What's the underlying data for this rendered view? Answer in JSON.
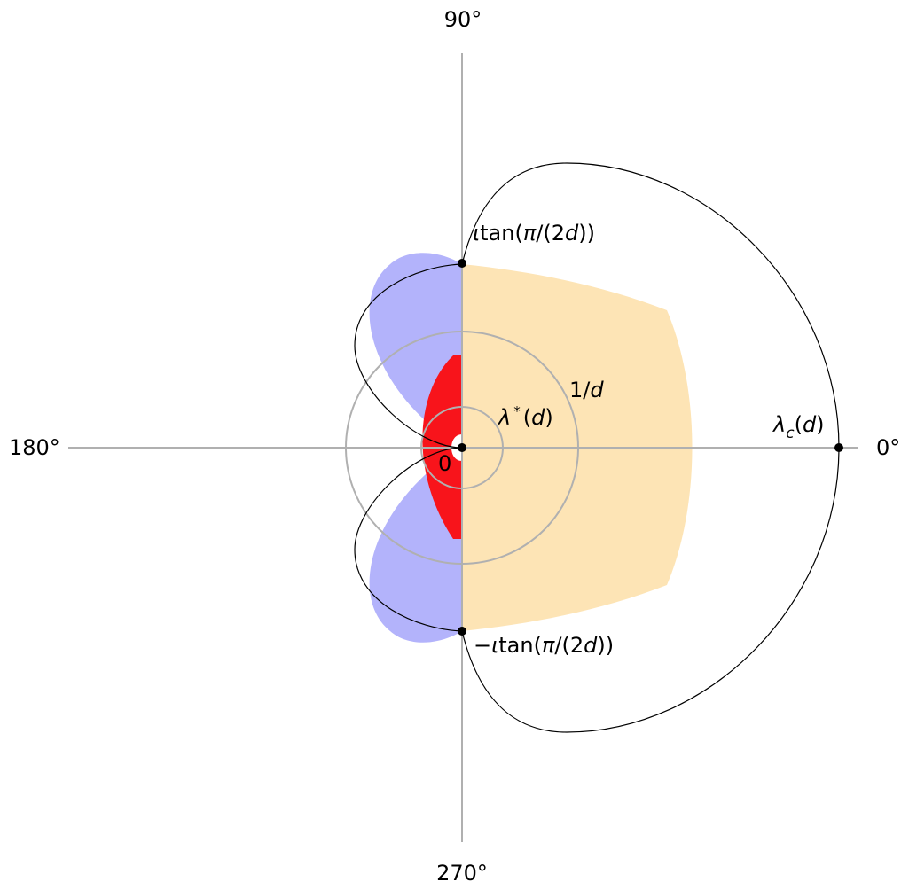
{
  "angle_labels": {
    "deg0": "0°",
    "deg90": "90°",
    "deg180": "180°",
    "deg270": "270°"
  },
  "point_labels": {
    "top": {
      "prefix": "ι",
      "fn": "tan(",
      "pi": "π",
      "mid": "/(2",
      "d": "d",
      "close": "))"
    },
    "bottom": {
      "prefix": "−ι",
      "fn": "tan(",
      "pi": "π",
      "mid": "/(2",
      "d": "d",
      "close": "))"
    },
    "lambda_c": {
      "sym": "λ",
      "sub": "c",
      "open": "(",
      "d": "d",
      "close": ")"
    },
    "lambda_star": {
      "sym": "λ",
      "sup": "*",
      "open": "(",
      "d": "d",
      "close": ")"
    },
    "one_over_d": {
      "num": "1/",
      "d": "d"
    },
    "origin": "0"
  },
  "colors": {
    "axis": "#b0b0b0",
    "circle": "#b0b0b0",
    "outline": "#000000",
    "orange_region": "#fde4b5",
    "blue_region": "#b3b3fb",
    "red_region": "#f8141b",
    "point": "#000000"
  }
}
